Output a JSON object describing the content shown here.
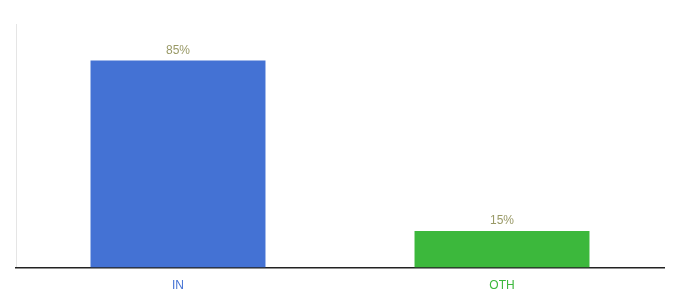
{
  "chart_data": {
    "type": "bar",
    "categories": [
      "IN",
      "OTH"
    ],
    "values": [
      85,
      15
    ],
    "value_labels": [
      "85%",
      "15%"
    ],
    "data_labels": true,
    "colors": [
      "#4472D4",
      "#3CB83C"
    ],
    "ylim": [
      0,
      100
    ],
    "tick_labels": "x",
    "grid": false
  }
}
